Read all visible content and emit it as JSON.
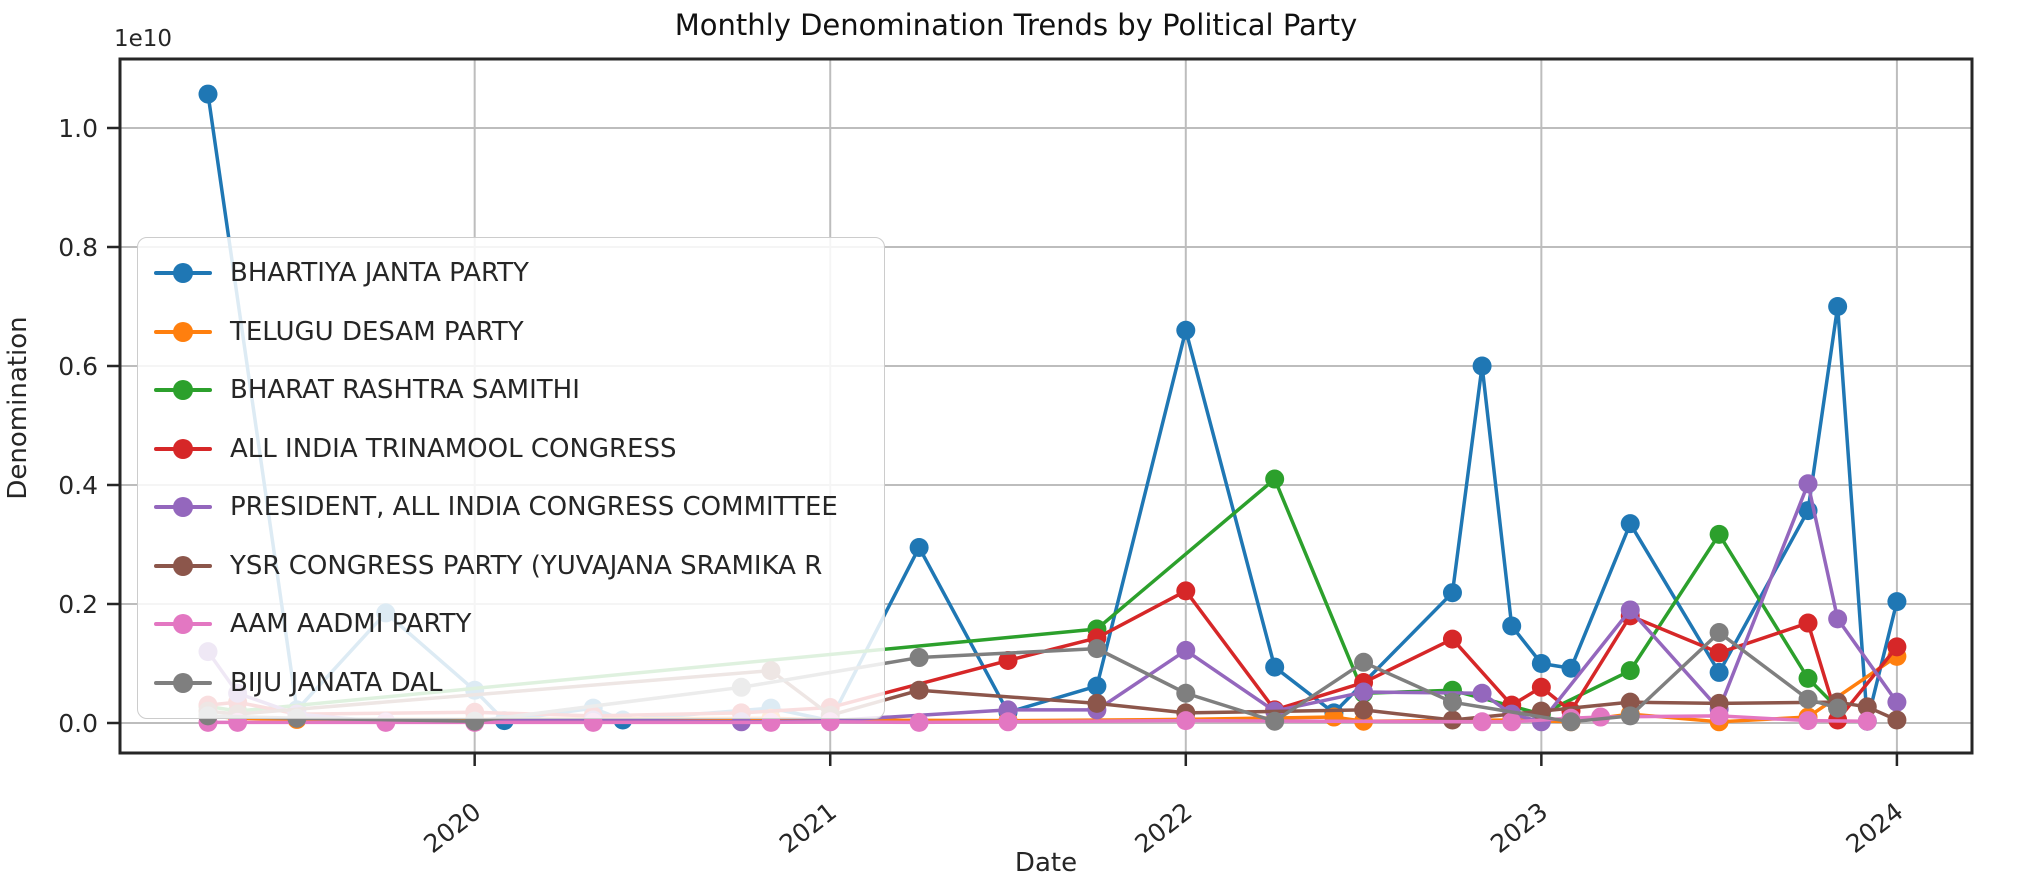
{
  "figure": {
    "title": "Monthly Denomination Trends by Political Party",
    "offset_text": "1e10",
    "xlabel": "Date",
    "ylabel": "Denomination"
  },
  "axes": {
    "y_ticks": [
      {
        "label": "0.0",
        "value": 0.0
      },
      {
        "label": "0.2",
        "value": 0.2
      },
      {
        "label": "0.4",
        "value": 0.4
      },
      {
        "label": "0.6",
        "value": 0.6
      },
      {
        "label": "0.8",
        "value": 0.8
      },
      {
        "label": "1.0",
        "value": 1.0
      }
    ],
    "x_ticks": [
      {
        "label": "2020",
        "date": "2020-01"
      },
      {
        "label": "2021",
        "date": "2021-01"
      },
      {
        "label": "2022",
        "date": "2022-01"
      },
      {
        "label": "2023",
        "date": "2023-01"
      },
      {
        "label": "2024",
        "date": "2024-01"
      }
    ]
  },
  "chart_data": {
    "type": "line",
    "title": "Monthly Denomination Trends by Political Party",
    "xlabel": "Date",
    "ylabel": "Denomination",
    "value_units": "1e10",
    "ylim": [
      -0.05,
      1.12
    ],
    "x_range": [
      "2019-04",
      "2024-01"
    ],
    "grid": true,
    "legend_position": "upper-left-inside",
    "series": [
      {
        "name": "BHARTIYA JANTA PARTY",
        "color": "#1f77b4",
        "points": [
          [
            "2019-04",
            1.057
          ],
          [
            "2019-07",
            0.022
          ],
          [
            "2019-10",
            0.185
          ],
          [
            "2020-01",
            0.055
          ],
          [
            "2020-02",
            0.004
          ],
          [
            "2020-05",
            0.025
          ],
          [
            "2020-06",
            0.005
          ],
          [
            "2020-11",
            0.025
          ],
          [
            "2021-01",
            0.004
          ],
          [
            "2021-04",
            0.295
          ],
          [
            "2021-07",
            0.018
          ],
          [
            "2021-10",
            0.062
          ],
          [
            "2022-01",
            0.66
          ],
          [
            "2022-04",
            0.094
          ],
          [
            "2022-06",
            0.017
          ],
          [
            "2022-10",
            0.219
          ],
          [
            "2022-11",
            0.6
          ],
          [
            "2022-12",
            0.163
          ],
          [
            "2023-01",
            0.1
          ],
          [
            "2023-02",
            0.092
          ],
          [
            "2023-04",
            0.335
          ],
          [
            "2023-07",
            0.085
          ],
          [
            "2023-10",
            0.357
          ],
          [
            "2023-11",
            0.7
          ],
          [
            "2023-12",
            0.003
          ],
          [
            "2024-01",
            0.204
          ]
        ]
      },
      {
        "name": "TELUGU DESAM PARTY",
        "color": "#ff7f0e",
        "points": [
          [
            "2019-04",
            0.012
          ],
          [
            "2019-05",
            0.008
          ],
          [
            "2019-07",
            0.006
          ],
          [
            "2020-01",
            0.006
          ],
          [
            "2020-11",
            0.008
          ],
          [
            "2021-01",
            0.005
          ],
          [
            "2021-07",
            0.004
          ],
          [
            "2022-01",
            0.006
          ],
          [
            "2022-06",
            0.01
          ],
          [
            "2022-07",
            0.003
          ],
          [
            "2022-12",
            0.005
          ],
          [
            "2023-02",
            0.002
          ],
          [
            "2023-04",
            0.015
          ],
          [
            "2023-07",
            0.002
          ],
          [
            "2023-10",
            0.01
          ],
          [
            "2024-01",
            0.112
          ]
        ]
      },
      {
        "name": "BHARAT RASHTRA SAMITHI",
        "color": "#2ca02c",
        "points": [
          [
            "2019-04",
            0.028
          ],
          [
            "2019-05",
            0.02
          ],
          [
            "2021-10",
            0.158
          ],
          [
            "2022-04",
            0.41
          ],
          [
            "2022-07",
            0.05
          ],
          [
            "2022-10",
            0.055
          ],
          [
            "2023-01",
            0.015
          ],
          [
            "2023-04",
            0.088
          ],
          [
            "2023-07",
            0.317
          ],
          [
            "2023-10",
            0.075
          ],
          [
            "2023-11",
            0.025
          ]
        ]
      },
      {
        "name": "ALL INDIA TRINAMOOL CONGRESS",
        "color": "#d62728",
        "points": [
          [
            "2019-04",
            0.03
          ],
          [
            "2019-05",
            0.035
          ],
          [
            "2019-07",
            0.015
          ],
          [
            "2020-01",
            0.018
          ],
          [
            "2020-05",
            0.012
          ],
          [
            "2020-10",
            0.017
          ],
          [
            "2021-01",
            0.026
          ],
          [
            "2021-07",
            0.105
          ],
          [
            "2021-10",
            0.143
          ],
          [
            "2022-01",
            0.222
          ],
          [
            "2022-04",
            0.022
          ],
          [
            "2022-07",
            0.068
          ],
          [
            "2022-10",
            0.141
          ],
          [
            "2022-12",
            0.03
          ],
          [
            "2023-01",
            0.06
          ],
          [
            "2023-02",
            0.02
          ],
          [
            "2023-04",
            0.18
          ],
          [
            "2023-07",
            0.118
          ],
          [
            "2023-10",
            0.168
          ],
          [
            "2023-11",
            0.005
          ],
          [
            "2024-01",
            0.128
          ]
        ]
      },
      {
        "name": "PRESIDENT, ALL INDIA CONGRESS COMMITTEE",
        "color": "#9467bd",
        "points": [
          [
            "2019-04",
            0.12
          ],
          [
            "2019-05",
            0.05
          ],
          [
            "2019-07",
            0.015
          ],
          [
            "2019-10",
            0.002
          ],
          [
            "2020-01",
            0.003
          ],
          [
            "2020-05",
            0.005
          ],
          [
            "2020-10",
            0.002
          ],
          [
            "2021-01",
            0.004
          ],
          [
            "2021-07",
            0.022
          ],
          [
            "2021-10",
            0.022
          ],
          [
            "2022-01",
            0.122
          ],
          [
            "2022-04",
            0.02
          ],
          [
            "2022-07",
            0.052
          ],
          [
            "2022-11",
            0.05
          ],
          [
            "2022-12",
            0.015
          ],
          [
            "2023-01",
            0.002
          ],
          [
            "2023-04",
            0.19
          ],
          [
            "2023-07",
            0.023
          ],
          [
            "2023-10",
            0.402
          ],
          [
            "2023-11",
            0.175
          ],
          [
            "2024-01",
            0.035
          ]
        ]
      },
      {
        "name": "YSR CONGRESS PARTY (YUVAJANA SRAMIKA R",
        "color": "#8c564b",
        "points": [
          [
            "2019-04",
            0.02
          ],
          [
            "2019-05",
            0.015
          ],
          [
            "2020-11",
            0.088
          ],
          [
            "2021-01",
            0.013
          ],
          [
            "2021-04",
            0.055
          ],
          [
            "2021-10",
            0.033
          ],
          [
            "2022-01",
            0.017
          ],
          [
            "2022-07",
            0.022
          ],
          [
            "2022-10",
            0.005
          ],
          [
            "2023-01",
            0.02
          ],
          [
            "2023-04",
            0.035
          ],
          [
            "2023-07",
            0.033
          ],
          [
            "2023-11",
            0.035
          ],
          [
            "2023-12",
            0.027
          ],
          [
            "2024-01",
            0.005
          ]
        ]
      },
      {
        "name": "AAM AADMI PARTY",
        "color": "#e377c2",
        "points": [
          [
            "2019-04",
            0.001
          ],
          [
            "2019-05",
            0.001
          ],
          [
            "2019-10",
            0.001
          ],
          [
            "2020-01",
            0.001
          ],
          [
            "2020-05",
            0.001
          ],
          [
            "2020-11",
            0.001
          ],
          [
            "2021-01",
            0.002
          ],
          [
            "2021-04",
            0.001
          ],
          [
            "2021-07",
            0.002
          ],
          [
            "2022-01",
            0.004
          ],
          [
            "2022-11",
            0.002
          ],
          [
            "2022-12",
            0.002
          ],
          [
            "2023-02",
            0.008
          ],
          [
            "2023-03",
            0.01
          ],
          [
            "2023-07",
            0.012
          ],
          [
            "2023-10",
            0.004
          ],
          [
            "2023-12",
            0.003
          ]
        ]
      },
      {
        "name": "BIJU JANATA DAL",
        "color": "#7f7f7f",
        "points": [
          [
            "2019-04",
            0.012
          ],
          [
            "2019-07",
            0.008
          ],
          [
            "2020-01",
            0.003
          ],
          [
            "2020-10",
            0.06
          ],
          [
            "2021-04",
            0.11
          ],
          [
            "2021-10",
            0.125
          ],
          [
            "2022-01",
            0.05
          ],
          [
            "2022-04",
            0.003
          ],
          [
            "2022-07",
            0.102
          ],
          [
            "2022-10",
            0.035
          ],
          [
            "2023-02",
            0.002
          ],
          [
            "2023-04",
            0.012
          ],
          [
            "2023-07",
            0.152
          ],
          [
            "2023-10",
            0.04
          ],
          [
            "2023-11",
            0.025
          ]
        ]
      }
    ]
  }
}
